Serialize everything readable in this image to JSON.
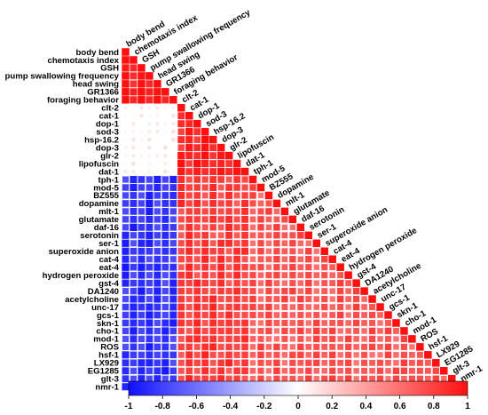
{
  "chart_data": {
    "type": "heatmap",
    "title": "",
    "variables": [
      "body bend",
      "chemotaxis index",
      "GSH",
      "pump swallowing frequency",
      "head swing",
      "GR1366",
      "foraging behavior",
      "clt-2",
      "cat-1",
      "dop-1",
      "sod-3",
      "hsp-16.2",
      "dop-3",
      "glr-2",
      "lipofuscin",
      "dat-1",
      "tph-1",
      "mod-5",
      "BZ555",
      "dopamine",
      "mlt-1",
      "glutamate",
      "daf-16",
      "serotonin",
      "ser-1",
      "superoxide anion",
      "cat-4",
      "eat-4",
      "hydrogen peroxide",
      "gst-4",
      "DA1240",
      "acetylcholine",
      "unc-17",
      "gcs-1",
      "skn-1",
      "cho-1",
      "mod-1",
      "ROS",
      "hsf-1",
      "LX929",
      "EG1285",
      "glt-3",
      "nmr-1"
    ],
    "group_a_count": 7,
    "group_b_count": 9,
    "correlation_levels": {
      "a_a": 0.95,
      "b_b": 0.9,
      "c_c": 0.7,
      "a_b": 0.05,
      "a_c": -0.85,
      "b_c": 0.8
    },
    "legend": {
      "position": "bottom",
      "min": -1,
      "max": 1,
      "ticks": [
        "-1",
        "-0.8",
        "-0.6",
        "-0.4",
        "-0.2",
        "0",
        "0.2",
        "0.4",
        "0.6",
        "0.8",
        "1"
      ],
      "colors": {
        "negative": "#1010ff",
        "zero": "#ffffff",
        "positive": "#ff1010"
      }
    }
  }
}
